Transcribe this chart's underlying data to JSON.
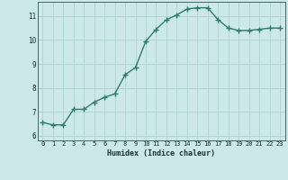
{
  "x": [
    0,
    1,
    2,
    3,
    4,
    5,
    6,
    7,
    8,
    9,
    10,
    11,
    12,
    13,
    14,
    15,
    16,
    17,
    18,
    19,
    20,
    21,
    22,
    23
  ],
  "y": [
    6.55,
    6.45,
    6.45,
    7.1,
    7.1,
    7.4,
    7.6,
    7.75,
    8.55,
    8.85,
    9.95,
    10.45,
    10.85,
    11.05,
    11.3,
    11.35,
    11.35,
    10.85,
    10.5,
    10.4,
    10.4,
    10.45,
    10.5,
    10.5
  ],
  "line_color": "#2e7d6e",
  "marker": "+",
  "bg_color": "#cce8e8",
  "grid_color_major": "#aacece",
  "xlabel": "Humidex (Indice chaleur)",
  "xlim": [
    -0.5,
    23.5
  ],
  "ylim": [
    5.8,
    11.6
  ],
  "yticks": [
    6,
    7,
    8,
    9,
    10,
    11
  ],
  "xticks": [
    0,
    1,
    2,
    3,
    4,
    5,
    6,
    7,
    8,
    9,
    10,
    11,
    12,
    13,
    14,
    15,
    16,
    17,
    18,
    19,
    20,
    21,
    22,
    23
  ],
  "font_color": "#1a3333",
  "axis_color": "#446666",
  "line_width": 1.0,
  "marker_size": 4
}
